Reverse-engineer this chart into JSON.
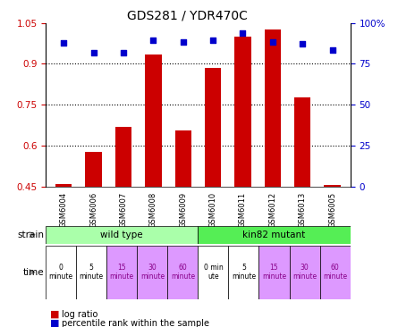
{
  "title": "GDS281 / YDR470C",
  "samples": [
    "GSM6004",
    "GSM6006",
    "GSM6007",
    "GSM6008",
    "GSM6009",
    "GSM6010",
    "GSM6011",
    "GSM6012",
    "GSM6013",
    "GSM6005"
  ],
  "log_ratio": [
    0.46,
    0.575,
    0.67,
    0.935,
    0.655,
    0.885,
    1.0,
    1.025,
    0.775,
    0.455
  ],
  "percentile": [
    87.5,
    82.0,
    82.0,
    89.5,
    88.5,
    89.5,
    94.0,
    88.5,
    87.0,
    83.5
  ],
  "ylim_left": [
    0.45,
    1.05
  ],
  "ylim_right": [
    0,
    100
  ],
  "yticks_left": [
    0.45,
    0.6,
    0.75,
    0.9,
    1.05
  ],
  "yticks_right": [
    0,
    25,
    50,
    75,
    100
  ],
  "ytick_labels_left": [
    "0.45",
    "0.6",
    "0.75",
    "0.9",
    "1.05"
  ],
  "ytick_labels_right": [
    "0",
    "25",
    "50",
    "75",
    "100%"
  ],
  "bar_color": "#cc0000",
  "scatter_color": "#0000cc",
  "strain_wild_color": "#aaffaa",
  "strain_mutant_color": "#55ee55",
  "time_bg_colors": [
    "#ffffff",
    "#ffffff",
    "#dd99ff",
    "#dd99ff",
    "#dd99ff",
    "#ffffff",
    "#ffffff",
    "#dd99ff",
    "#dd99ff",
    "#dd99ff"
  ],
  "time_labels": [
    "0\nminute",
    "5\nminute",
    "15\nminute",
    "30\nminute",
    "60\nminute",
    "0 min\nute",
    "5\nminute",
    "15\nminute",
    "30\nminute",
    "60\nminute"
  ],
  "strain_labels": [
    "wild type",
    "kin82 mutant"
  ],
  "tick_label_color_left": "#cc0000",
  "tick_label_color_right": "#0000cc"
}
